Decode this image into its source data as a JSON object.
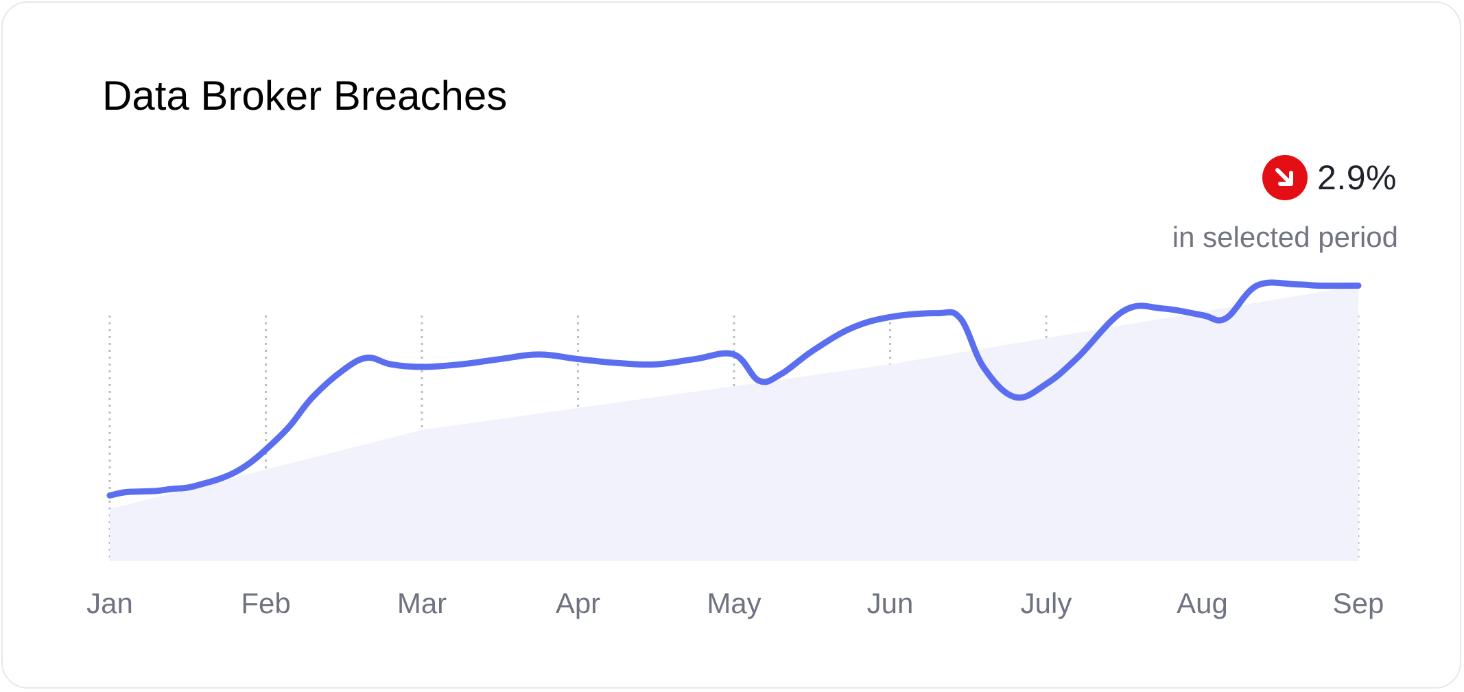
{
  "card": {
    "title": "Data Broker Breaches",
    "change": {
      "direction_icon": "arrow-down-right-icon",
      "icon_color": "#e30f15",
      "value": "2.9%",
      "caption": "in selected period"
    }
  },
  "chart_data": {
    "type": "area",
    "title": "Data Broker Breaches",
    "xlabel": "",
    "ylabel": "",
    "categories": [
      "Jan",
      "Feb",
      "Mar",
      "Apr",
      "May",
      "Jun",
      "July",
      "Aug",
      "Sep"
    ],
    "x": [
      0,
      0.1,
      0.2,
      0.3,
      0.4,
      0.5,
      0.6,
      0.7,
      0.8,
      0.9,
      1.0,
      1.15,
      1.3,
      1.5,
      1.65,
      1.8,
      2.0,
      2.25,
      2.5,
      2.75,
      3.0,
      3.25,
      3.5,
      3.75,
      4.0,
      4.16,
      4.3,
      4.5,
      4.75,
      5.0,
      5.3,
      5.45,
      5.6,
      5.8,
      6.0,
      6.2,
      6.5,
      6.75,
      7.0,
      7.15,
      7.35,
      7.6,
      7.75,
      8.0
    ],
    "y": [
      3.0,
      3.05,
      3.06,
      3.07,
      3.1,
      3.12,
      3.18,
      3.25,
      3.35,
      3.5,
      3.7,
      4.05,
      4.5,
      4.92,
      5.1,
      5.0,
      4.96,
      5.0,
      5.08,
      5.15,
      5.08,
      5.02,
      5.0,
      5.08,
      5.15,
      4.75,
      4.85,
      5.2,
      5.55,
      5.72,
      5.78,
      5.7,
      4.95,
      4.5,
      4.7,
      5.1,
      5.82,
      5.85,
      5.75,
      5.7,
      6.2,
      6.22,
      6.2,
      6.2
    ],
    "ylim": [
      2,
      7
    ],
    "grid": "vertical-dotted",
    "legend": "none",
    "line_color": "#5b6ef0",
    "fill_color": "#f1f2fc"
  }
}
